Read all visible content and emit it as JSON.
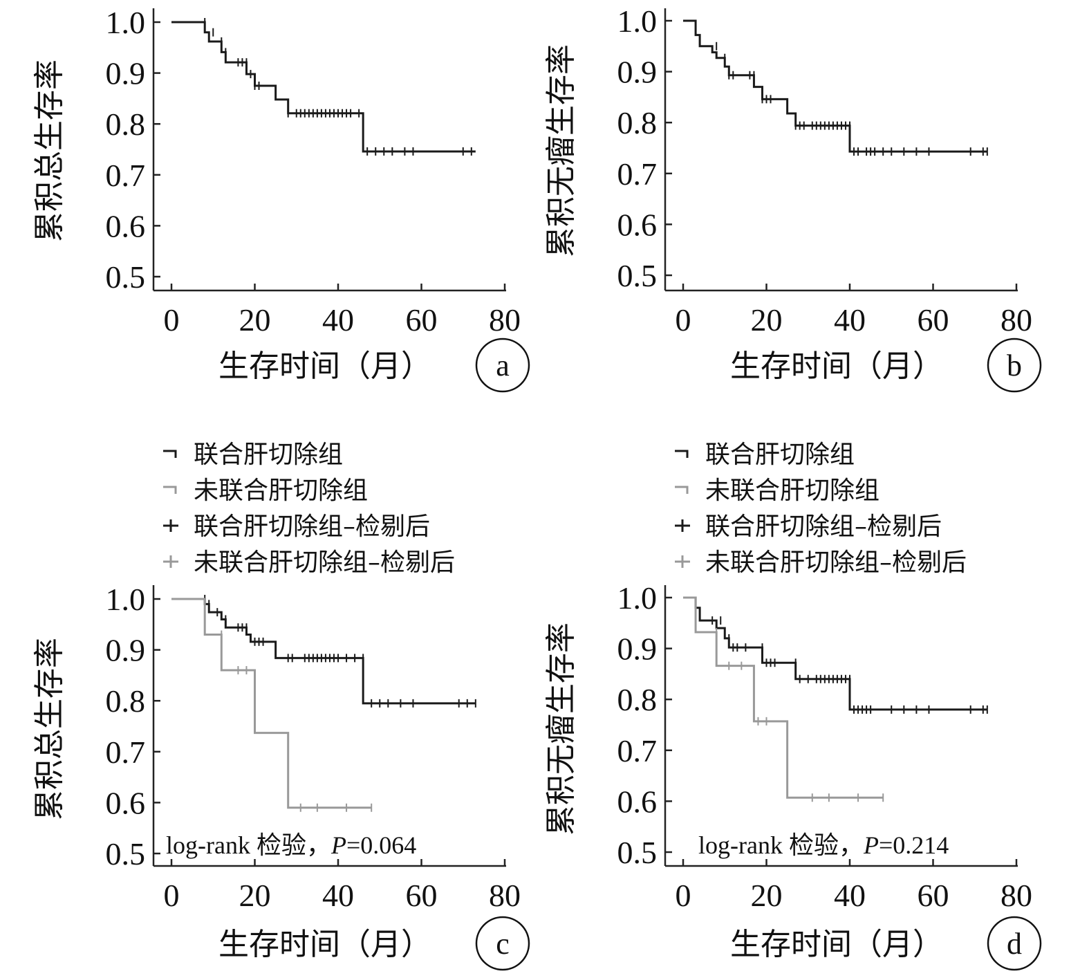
{
  "chart_data": [
    {
      "panel": "a",
      "type": "line",
      "step": true,
      "xlabel": "生存时间（月）",
      "ylabel": "累积总生存率",
      "xlim": [
        0,
        80
      ],
      "ylim": [
        0.5,
        1.0
      ],
      "xticks": [
        "0",
        "20",
        "40",
        "60",
        "80"
      ],
      "yticks": [
        "0.5",
        "0.6",
        "0.7",
        "0.8",
        "0.9",
        "1.0"
      ],
      "series": [
        {
          "color": "#1a1a1a",
          "steps": [
            [
              0,
              1.0
            ],
            [
              8,
              0.98
            ],
            [
              9,
              0.962
            ],
            [
              12,
              0.941
            ],
            [
              13,
              0.921
            ],
            [
              18,
              0.898
            ],
            [
              20,
              0.875
            ],
            [
              25,
              0.848
            ],
            [
              28,
              0.821
            ],
            [
              46,
              0.746
            ],
            [
              73,
              0.746
            ]
          ],
          "censored": [
            [
              8,
              1.0
            ],
            [
              10,
              0.98
            ],
            [
              12,
              0.962
            ],
            [
              13,
              0.941
            ],
            [
              16,
              0.921
            ],
            [
              17,
              0.921
            ],
            [
              18,
              0.921
            ],
            [
              19,
              0.898
            ],
            [
              20,
              0.875
            ],
            [
              21,
              0.875
            ],
            [
              28,
              0.821
            ],
            [
              30,
              0.821
            ],
            [
              31,
              0.821
            ],
            [
              32,
              0.821
            ],
            [
              33,
              0.821
            ],
            [
              34,
              0.821
            ],
            [
              35,
              0.821
            ],
            [
              36,
              0.821
            ],
            [
              37,
              0.821
            ],
            [
              38,
              0.821
            ],
            [
              39,
              0.821
            ],
            [
              40,
              0.821
            ],
            [
              41,
              0.821
            ],
            [
              42,
              0.821
            ],
            [
              43,
              0.821
            ],
            [
              45,
              0.821
            ],
            [
              47,
              0.746
            ],
            [
              49,
              0.746
            ],
            [
              51,
              0.746
            ],
            [
              53,
              0.746
            ],
            [
              56,
              0.746
            ],
            [
              58,
              0.746
            ],
            [
              70,
              0.746
            ],
            [
              72,
              0.746
            ]
          ]
        }
      ]
    },
    {
      "panel": "b",
      "type": "line",
      "step": true,
      "xlabel": "生存时间（月）",
      "ylabel": "累积无瘤生存率",
      "xlim": [
        0,
        80
      ],
      "ylim": [
        0.5,
        1.0
      ],
      "xticks": [
        "0",
        "20",
        "40",
        "60",
        "80"
      ],
      "yticks": [
        "0.5",
        "0.6",
        "0.7",
        "0.8",
        "0.9",
        "1.0"
      ],
      "series": [
        {
          "color": "#1a1a1a",
          "steps": [
            [
              0,
              1.0
            ],
            [
              3,
              0.972
            ],
            [
              4,
              0.95
            ],
            [
              7,
              0.938
            ],
            [
              8,
              0.927
            ],
            [
              10,
              0.91
            ],
            [
              11,
              0.893
            ],
            [
              17,
              0.87
            ],
            [
              19,
              0.846
            ],
            [
              25,
              0.818
            ],
            [
              27,
              0.794
            ],
            [
              40,
              0.743
            ],
            [
              73,
              0.743
            ]
          ],
          "censored": [
            [
              8,
              0.95
            ],
            [
              10,
              0.927
            ],
            [
              11,
              0.893
            ],
            [
              12,
              0.893
            ],
            [
              16,
              0.893
            ],
            [
              17,
              0.893
            ],
            [
              19,
              0.846
            ],
            [
              20,
              0.846
            ],
            [
              21,
              0.846
            ],
            [
              27,
              0.794
            ],
            [
              28,
              0.794
            ],
            [
              29,
              0.794
            ],
            [
              31,
              0.794
            ],
            [
              32,
              0.794
            ],
            [
              33,
              0.794
            ],
            [
              34,
              0.794
            ],
            [
              35,
              0.794
            ],
            [
              36,
              0.794
            ],
            [
              37,
              0.794
            ],
            [
              38,
              0.794
            ],
            [
              39,
              0.794
            ],
            [
              40,
              0.794
            ],
            [
              41,
              0.743
            ],
            [
              42,
              0.743
            ],
            [
              44,
              0.743
            ],
            [
              45,
              0.743
            ],
            [
              46,
              0.743
            ],
            [
              48,
              0.743
            ],
            [
              50,
              0.743
            ],
            [
              53,
              0.743
            ],
            [
              56,
              0.743
            ],
            [
              59,
              0.743
            ],
            [
              69,
              0.743
            ],
            [
              72,
              0.743
            ],
            [
              73,
              0.743
            ]
          ]
        }
      ]
    },
    {
      "panel": "c",
      "type": "line",
      "step": true,
      "xlabel": "生存时间（月）",
      "ylabel": "累积总生存率",
      "xlim": [
        0,
        80
      ],
      "ylim": [
        0.5,
        1.0
      ],
      "xticks": [
        "0",
        "20",
        "40",
        "60",
        "80"
      ],
      "yticks": [
        "0.5",
        "0.6",
        "0.7",
        "0.8",
        "0.9",
        "1.0"
      ],
      "legend": [
        {
          "label": "联合肝切除组",
          "color": "#1a1a1a",
          "marker": "step"
        },
        {
          "label": "未联合肝切除组",
          "color": "#999999",
          "marker": "step"
        },
        {
          "label": "联合肝切除组–检剔后",
          "color": "#1a1a1a",
          "marker": "plus"
        },
        {
          "label": "未联合肝切除组–检剔后",
          "color": "#999999",
          "marker": "plus"
        }
      ],
      "annotation_text": "log-rank 检验，",
      "p_symbol": "P",
      "p_value": "=0.064",
      "series": [
        {
          "name": "联合肝切除组",
          "color": "#1a1a1a",
          "steps": [
            [
              0,
              1.0
            ],
            [
              8,
              0.99
            ],
            [
              9,
              0.974
            ],
            [
              12,
              0.96
            ],
            [
              13,
              0.944
            ],
            [
              18,
              0.93
            ],
            [
              19,
              0.916
            ],
            [
              25,
              0.884
            ],
            [
              46,
              0.795
            ],
            [
              73,
              0.795
            ]
          ],
          "censored": [
            [
              8,
              1.0
            ],
            [
              9,
              0.99
            ],
            [
              11,
              0.974
            ],
            [
              13,
              0.96
            ],
            [
              16,
              0.944
            ],
            [
              17,
              0.944
            ],
            [
              18,
              0.944
            ],
            [
              20,
              0.916
            ],
            [
              21,
              0.916
            ],
            [
              22,
              0.916
            ],
            [
              28,
              0.884
            ],
            [
              29,
              0.884
            ],
            [
              32,
              0.884
            ],
            [
              33,
              0.884
            ],
            [
              34,
              0.884
            ],
            [
              35,
              0.884
            ],
            [
              36,
              0.884
            ],
            [
              37,
              0.884
            ],
            [
              38,
              0.884
            ],
            [
              39,
              0.884
            ],
            [
              40,
              0.884
            ],
            [
              42,
              0.884
            ],
            [
              44,
              0.884
            ],
            [
              46,
              0.884
            ],
            [
              48,
              0.795
            ],
            [
              50,
              0.795
            ],
            [
              52,
              0.795
            ],
            [
              55,
              0.795
            ],
            [
              58,
              0.795
            ],
            [
              69,
              0.795
            ],
            [
              71,
              0.795
            ],
            [
              73,
              0.795
            ]
          ]
        },
        {
          "name": "未联合肝切除组",
          "color": "#999999",
          "steps": [
            [
              0,
              1.0
            ],
            [
              8,
              0.93
            ],
            [
              12,
              0.86
            ],
            [
              20,
              0.737
            ],
            [
              28,
              0.59
            ],
            [
              48,
              0.59
            ]
          ],
          "censored": [
            [
              12,
              0.93
            ],
            [
              16,
              0.86
            ],
            [
              18,
              0.86
            ],
            [
              31,
              0.59
            ],
            [
              35,
              0.59
            ],
            [
              42,
              0.59
            ],
            [
              48,
              0.59
            ]
          ]
        }
      ]
    },
    {
      "panel": "d",
      "type": "line",
      "step": true,
      "xlabel": "生存时间（月）",
      "ylabel": "累积无瘤生存率",
      "xlim": [
        0,
        80
      ],
      "ylim": [
        0.5,
        1.0
      ],
      "xticks": [
        "0",
        "20",
        "40",
        "60",
        "80"
      ],
      "yticks": [
        "0.5",
        "0.6",
        "0.7",
        "0.8",
        "0.9",
        "1.0"
      ],
      "legend": [
        {
          "label": "联合肝切除组",
          "color": "#1a1a1a",
          "marker": "step"
        },
        {
          "label": "未联合肝切除组",
          "color": "#999999",
          "marker": "step"
        },
        {
          "label": "联合肝切除组–检剔后",
          "color": "#1a1a1a",
          "marker": "plus"
        },
        {
          "label": "未联合肝切除组–检剔后",
          "color": "#999999",
          "marker": "plus"
        }
      ],
      "annotation_text": "log-rank 检验，",
      "p_symbol": "P",
      "p_value": "=0.214",
      "series": [
        {
          "name": "联合肝切除组",
          "color": "#1a1a1a",
          "steps": [
            [
              0,
              1.0
            ],
            [
              3,
              0.98
            ],
            [
              4,
              0.955
            ],
            [
              8,
              0.94
            ],
            [
              10,
              0.92
            ],
            [
              11,
              0.902
            ],
            [
              19,
              0.872
            ],
            [
              27,
              0.84
            ],
            [
              40,
              0.78
            ],
            [
              73,
              0.78
            ]
          ],
          "censored": [
            [
              7,
              0.955
            ],
            [
              9,
              0.955
            ],
            [
              11,
              0.92
            ],
            [
              12,
              0.902
            ],
            [
              13,
              0.902
            ],
            [
              15,
              0.902
            ],
            [
              19,
              0.902
            ],
            [
              20,
              0.872
            ],
            [
              21,
              0.872
            ],
            [
              22,
              0.872
            ],
            [
              27,
              0.872
            ],
            [
              28,
              0.84
            ],
            [
              30,
              0.84
            ],
            [
              32,
              0.84
            ],
            [
              33,
              0.84
            ],
            [
              34,
              0.84
            ],
            [
              35,
              0.84
            ],
            [
              36,
              0.84
            ],
            [
              37,
              0.84
            ],
            [
              38,
              0.84
            ],
            [
              39,
              0.84
            ],
            [
              40,
              0.84
            ],
            [
              41,
              0.78
            ],
            [
              42,
              0.78
            ],
            [
              43,
              0.78
            ],
            [
              44,
              0.78
            ],
            [
              45,
              0.78
            ],
            [
              50,
              0.78
            ],
            [
              53,
              0.78
            ],
            [
              56,
              0.78
            ],
            [
              59,
              0.78
            ],
            [
              69,
              0.78
            ],
            [
              72,
              0.78
            ],
            [
              73,
              0.78
            ]
          ]
        },
        {
          "name": "未联合肝切除组",
          "color": "#999999",
          "steps": [
            [
              0,
              1.0
            ],
            [
              3,
              0.932
            ],
            [
              8,
              0.866
            ],
            [
              17,
              0.757
            ],
            [
              25,
              0.607
            ],
            [
              48,
              0.607
            ]
          ],
          "censored": [
            [
              8,
              0.932
            ],
            [
              11,
              0.866
            ],
            [
              14,
              0.866
            ],
            [
              18,
              0.757
            ],
            [
              20,
              0.757
            ],
            [
              31,
              0.607
            ],
            [
              35,
              0.607
            ],
            [
              42,
              0.607
            ],
            [
              48,
              0.607
            ]
          ]
        }
      ]
    }
  ]
}
